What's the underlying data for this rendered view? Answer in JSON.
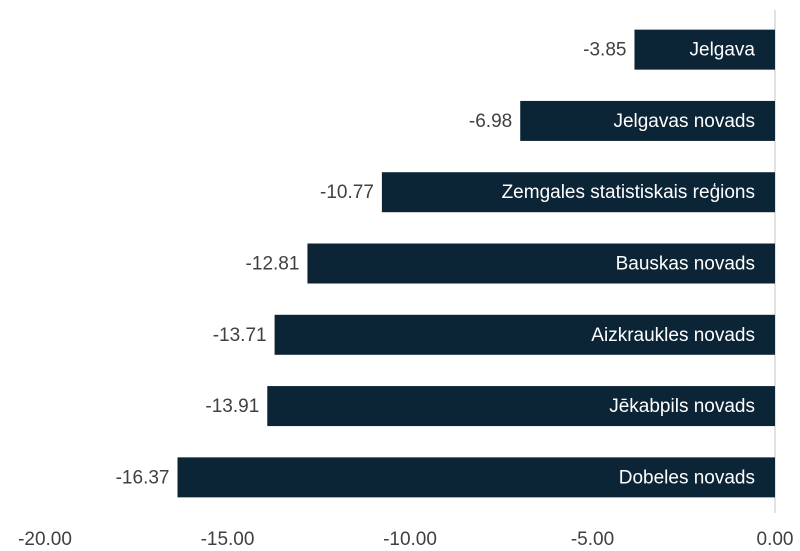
{
  "chart_data": {
    "type": "bar",
    "orientation": "horizontal",
    "categories": [
      "Jelgava",
      "Jelgavas novads",
      "Zemgales statistiskais reģions",
      "Bauskas novads",
      "Aizkraukles novads",
      "Jēkabpils novads",
      "Dobeles novads"
    ],
    "values": [
      -3.85,
      -6.98,
      -10.77,
      -12.81,
      -13.71,
      -13.91,
      -16.37
    ],
    "color": "#0b2436",
    "xlim": [
      -20,
      0
    ],
    "xticks": [
      {
        "value": -20,
        "label": "-20.00"
      },
      {
        "value": -15,
        "label": "-15.00"
      },
      {
        "value": -10,
        "label": "-10.00"
      },
      {
        "value": -5,
        "label": "-5.00"
      },
      {
        "value": 0,
        "label": "0.00"
      }
    ],
    "grid": false
  }
}
